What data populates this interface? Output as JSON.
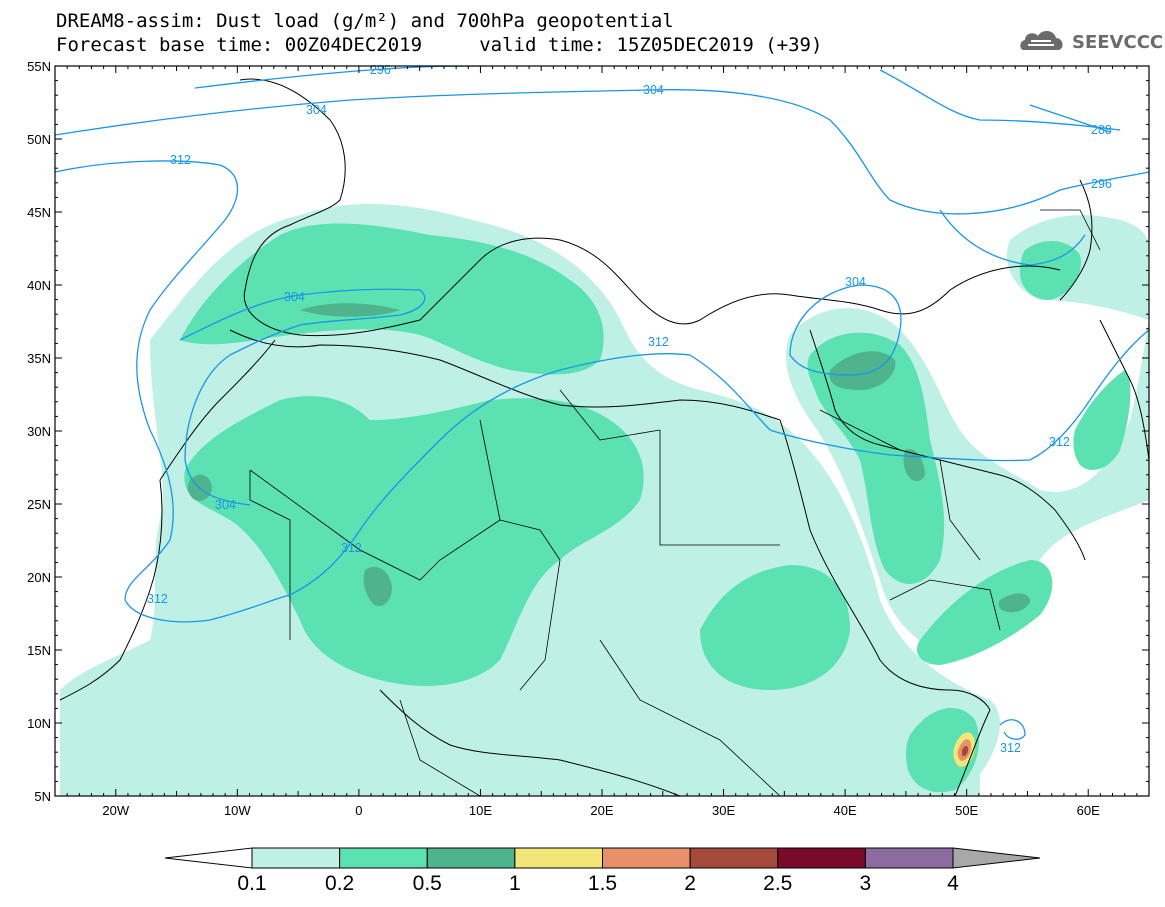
{
  "header": {
    "line1": "DREAM8-assim: Dust load (g/m²) and 700hPa geopotential",
    "line2": "Forecast base time: 00Z04DEC2019     valid time: 15Z05DEC2019 (+39)",
    "logo_text": "SEEVCCC",
    "logo_icon": "cloud-icon"
  },
  "map": {
    "lat_labels": [
      "55N",
      "50N",
      "45N",
      "40N",
      "35N",
      "30N",
      "25N",
      "20N",
      "15N",
      "10N",
      "5N"
    ],
    "lon_labels": [
      "20W",
      "10W",
      "0",
      "10E",
      "20E",
      "30E",
      "40E",
      "50E",
      "60E"
    ],
    "lon_range": [
      -25,
      65
    ],
    "lat_range": [
      5,
      55
    ],
    "contour_labels": [
      "296",
      "304",
      "288",
      "312",
      "304",
      "296",
      "304",
      "304",
      "312",
      "312",
      "304",
      "312",
      "312",
      "312"
    ],
    "colors": {
      "contour_line": "#1a96e6",
      "coast": "#000000"
    }
  },
  "colorbar": {
    "labels": [
      "0.1",
      "0.2",
      "0.5",
      "1",
      "1.5",
      "2",
      "2.5",
      "3",
      "4"
    ],
    "colors": [
      "#ffffff",
      "#bff0e6",
      "#5ce1b3",
      "#4fb38d",
      "#f2e679",
      "#e8906a",
      "#a34a3c",
      "#7a0a2a",
      "#8c6b9e",
      "#a8a8a8"
    ]
  },
  "chart_data": {
    "type": "heatmap",
    "title": "DREAM8-assim: Dust load (g/m²) and 700hPa geopotential",
    "x": [
      "20W",
      "10W",
      "0",
      "10E",
      "20E",
      "30E",
      "40E",
      "50E",
      "60E"
    ],
    "y": [
      "55N",
      "50N",
      "45N",
      "40N",
      "35N",
      "30N",
      "25N",
      "20N",
      "15N",
      "10N",
      "5N"
    ],
    "xlim": [
      -25,
      65
    ],
    "ylim": [
      5,
      55
    ],
    "levels": [
      0.1,
      0.2,
      0.5,
      1,
      1.5,
      2,
      2.5,
      3,
      4
    ],
    "contours": [
      {
        "value": 288,
        "label": "288"
      },
      {
        "value": 296,
        "label": "296"
      },
      {
        "value": 304,
        "label": "304"
      },
      {
        "value": 312,
        "label": "312"
      }
    ]
  }
}
